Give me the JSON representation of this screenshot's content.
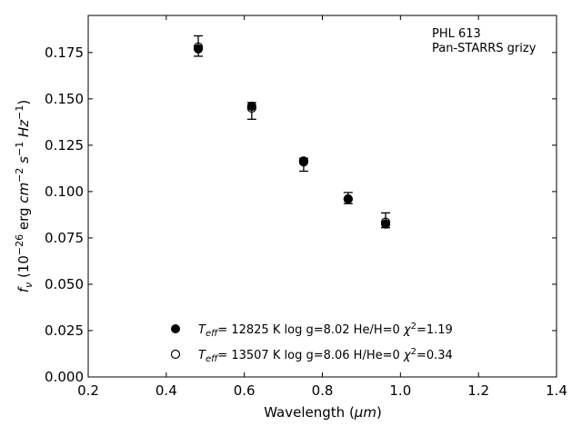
{
  "chart_data": {
    "type": "scatter",
    "xlabel_main": "Wavelength (",
    "xlabel_unit": "μm",
    "xlabel_close": ")",
    "ylabel_f": "f",
    "ylabel_nu": "ν",
    "ylabel_open": " (10",
    "ylabel_exp": "−26",
    "ylabel_erg": " erg ",
    "ylabel_cm": "cm",
    "ylabel_cm_exp": "−2",
    "ylabel_s": "s",
    "ylabel_s_exp": "−1",
    "ylabel_hz": "Hz",
    "ylabel_hz_exp": "−1",
    "ylabel_close": ")",
    "xlim": [
      0.2,
      1.4
    ],
    "ylim": [
      0.0,
      0.195
    ],
    "xticks": [
      "0.2",
      "0.4",
      "0.6",
      "0.8",
      "1.0",
      "1.2",
      "1.4"
    ],
    "yticks": [
      "0.000",
      "0.025",
      "0.050",
      "0.075",
      "0.100",
      "0.125",
      "0.150",
      "0.175"
    ],
    "annotation_line1": "PHL 613",
    "annotation_line2": "Pan-STARRS grizy",
    "legend_placement": "lower-center",
    "observed": {
      "x": [
        0.482,
        0.619,
        0.752,
        0.866,
        0.962
      ],
      "y": [
        0.1785,
        0.1435,
        0.1145,
        0.0965,
        0.0845
      ],
      "yerr": [
        0.0055,
        0.0045,
        0.0035,
        0.003,
        0.004
      ]
    },
    "series": [
      {
        "marker": "filled",
        "label_t": "T",
        "label_eff": "eff",
        "label_rest": "= 12825 K  log g=8.02  He/H=0  ",
        "label_chi": "χ",
        "label_chi_exp": "2",
        "label_chi_val": "=1.19",
        "x": [
          0.482,
          0.619,
          0.752,
          0.866,
          0.962
        ],
        "y": [
          0.177,
          0.146,
          0.116,
          0.096,
          0.0825
        ]
      },
      {
        "marker": "open",
        "label_t": "T",
        "label_eff": "eff",
        "label_rest": "= 13507 K  log g=8.06  H/He=0  ",
        "label_chi": "χ",
        "label_chi_exp": "2",
        "label_chi_val": "=0.34",
        "x": [
          0.482,
          0.619,
          0.752,
          0.866,
          0.962
        ],
        "y": [
          0.178,
          0.145,
          0.1165,
          0.096,
          0.0835
        ]
      }
    ]
  }
}
